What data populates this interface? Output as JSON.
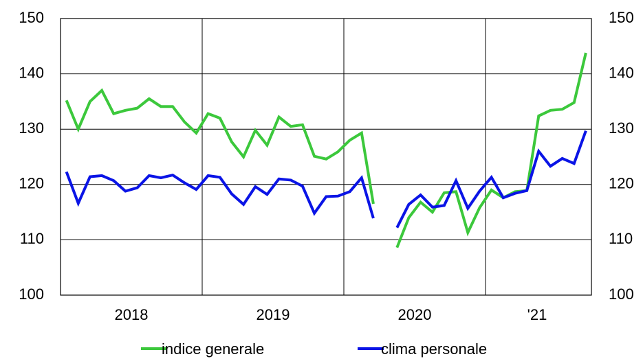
{
  "chart_data": {
    "type": "line",
    "categories": [
      null,
      null,
      null,
      null,
      null,
      null,
      null,
      null,
      null,
      null,
      null,
      null,
      null,
      null,
      null,
      null,
      null,
      null,
      null,
      null,
      null,
      null,
      null,
      null,
      null,
      null,
      null,
      null,
      null,
      null,
      null,
      null,
      null,
      null,
      null,
      null,
      null,
      null,
      null,
      null,
      null,
      null,
      null,
      null,
      null
    ],
    "year_labels": [
      "2018",
      "2019",
      "2020",
      "'21"
    ],
    "series": [
      {
        "name": "indice generale",
        "color": "#3cc83c",
        "values": [
          135.2,
          130,
          135,
          137,
          132.8,
          133.4,
          133.8,
          135.5,
          134.1,
          134.1,
          131.3,
          129.3,
          132.8,
          132,
          127.7,
          125,
          129.8,
          127.1,
          132.2,
          130.5,
          130.8,
          125.1,
          124.6,
          125.9,
          128,
          129.3,
          116.5,
          null,
          108.6,
          114,
          116.8,
          115,
          118.5,
          118.7,
          111.3,
          115.8,
          119,
          117.6,
          118.7,
          118.9,
          132.4,
          133.4,
          133.6,
          134.8,
          143.8
        ]
      },
      {
        "name": "clima personale",
        "color": "#0a14e6",
        "values": [
          122.3,
          116.6,
          121.4,
          121.6,
          120.7,
          118.8,
          119.4,
          121.6,
          121.2,
          121.7,
          120.3,
          119.1,
          121.6,
          121.3,
          118.3,
          116.4,
          119.6,
          118.2,
          121,
          120.8,
          119.7,
          114.8,
          117.8,
          117.9,
          118.7,
          121.2,
          113.9,
          null,
          112.2,
          116.4,
          118.1,
          115.9,
          116.2,
          120.7,
          115.7,
          118.8,
          121.3,
          117.6,
          118.4,
          118.9,
          126,
          123.3,
          124.7,
          123.8,
          129.7
        ]
      }
    ],
    "ylim": [
      100,
      150
    ],
    "yticks": [
      100,
      110,
      120,
      130,
      140,
      150
    ],
    "grid": true
  }
}
